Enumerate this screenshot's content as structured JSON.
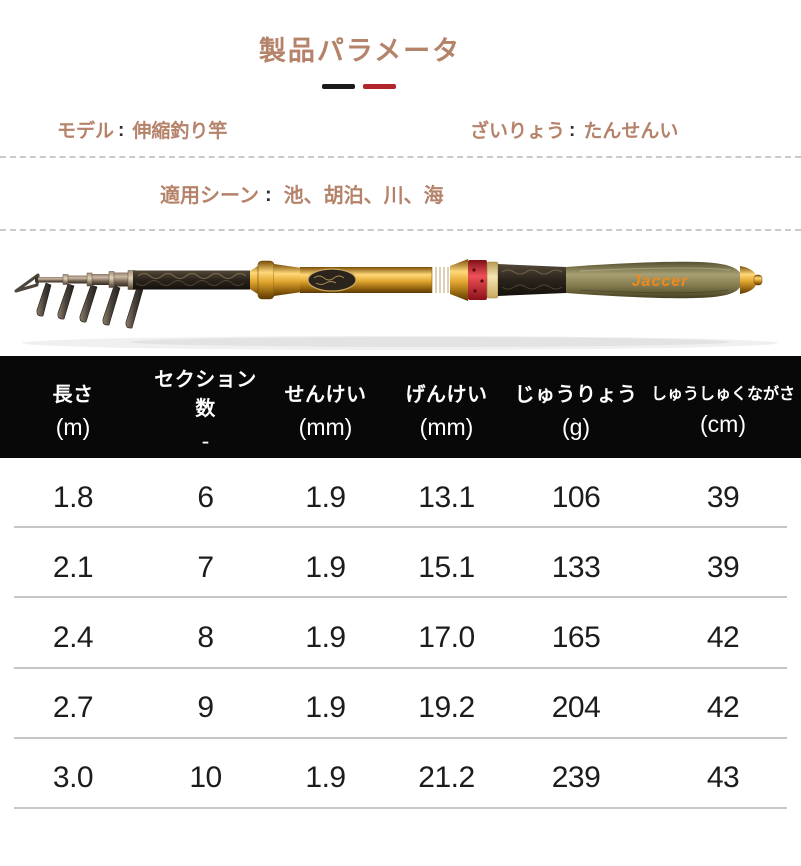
{
  "page": {
    "title": "製品パラメータ",
    "colon": ":"
  },
  "specs": {
    "model": {
      "label": "モデル",
      "value": "伸縮釣り竿"
    },
    "material": {
      "label": "ざいりょう",
      "value": "たんせんい"
    },
    "scene": {
      "label": "適用シーン",
      "value": "池、胡泊、川、海"
    }
  },
  "rod": {
    "brand": "Jaccer"
  },
  "table": {
    "columns": [
      {
        "name": "長さ",
        "unit": "(m)"
      },
      {
        "name": "セクション数",
        "unit": "-"
      },
      {
        "name": "せんけい",
        "unit": "(mm)"
      },
      {
        "name": "げんけい",
        "unit": "(mm)"
      },
      {
        "name": "じゅうりょう",
        "unit": "(g)"
      },
      {
        "name": "しゅうしゅくながさ",
        "unit": "(cm)"
      }
    ],
    "rows": [
      [
        "1.8",
        "6",
        "1.9",
        "13.1",
        "106",
        "39"
      ],
      [
        "2.1",
        "7",
        "1.9",
        "15.1",
        "133",
        "39"
      ],
      [
        "2.4",
        "8",
        "1.9",
        "17.0",
        "165",
        "42"
      ],
      [
        "2.7",
        "9",
        "1.9",
        "19.2",
        "204",
        "42"
      ],
      [
        "3.0",
        "10",
        "1.9",
        "21.2",
        "239",
        "43"
      ]
    ]
  },
  "colors": {
    "accent": "#b5826a",
    "dash_black": "#1a1a1a",
    "dash_red": "#b2252a",
    "header_bg": "#080808"
  }
}
